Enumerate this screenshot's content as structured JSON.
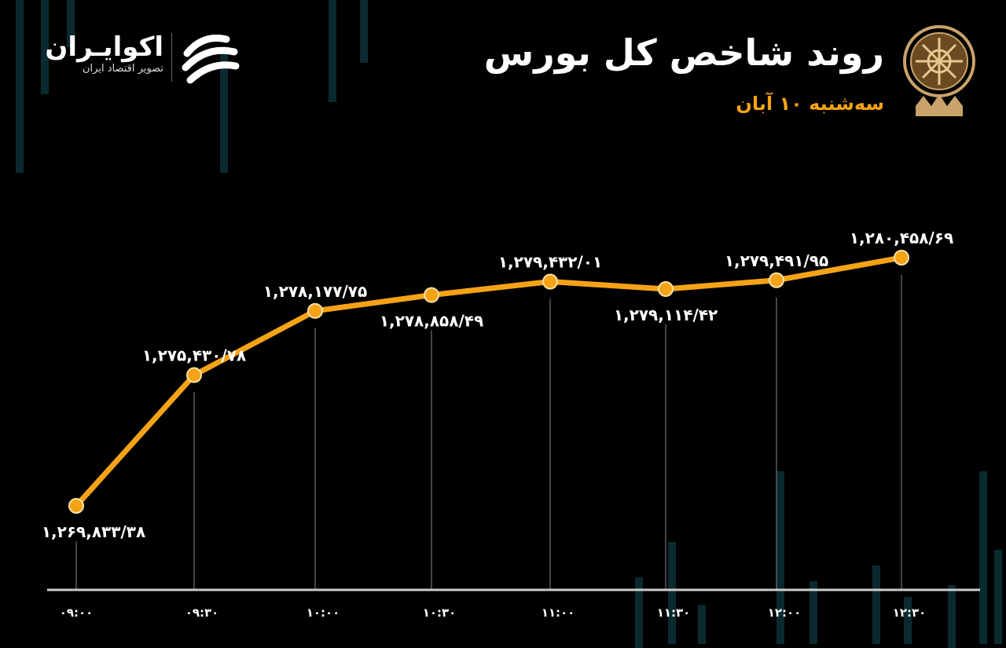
{
  "header": {
    "title": "روند شاخص کل بورس",
    "subtitle": "سه‌شنبه ۱۰ آبان"
  },
  "brand": {
    "name": "اکوایـران",
    "tagline": "تصویر اقتصاد ایران"
  },
  "colors": {
    "line": "#f5a316",
    "background": "#000000",
    "axis": "#cccccc"
  },
  "chart_data": {
    "type": "line",
    "title": "روند شاخص کل بورس",
    "xlabel": "",
    "ylabel": "",
    "grid": false,
    "categories": [
      "۰۹:۰۰",
      "۰۹:۳۰",
      "۱۰:۰۰",
      "۱۰:۳۰",
      "۱۱:۰۰",
      "۱۱:۳۰",
      "۱۲:۰۰",
      "۱۲:۳۰"
    ],
    "values": [
      1269833.38,
      1275430.78,
      1278177.75,
      1278858.49,
      1279432.01,
      1279114.42,
      1279491.95,
      1280458.69
    ],
    "data_labels": [
      "۱,۲۶۹,۸۳۳/۳۸",
      "۱,۲۷۵,۴۳۰/۷۸",
      "۱,۲۷۸,۱۷۷/۷۵",
      "۱,۲۷۸,۸۵۸/۴۹",
      "۱,۲۷۹,۴۳۲/۰۱",
      "۱,۲۷۹,۱۱۴/۴۲",
      "۱,۲۷۹,۴۹۱/۹۵",
      "۱,۲۸۰,۴۵۸/۶۹"
    ]
  }
}
